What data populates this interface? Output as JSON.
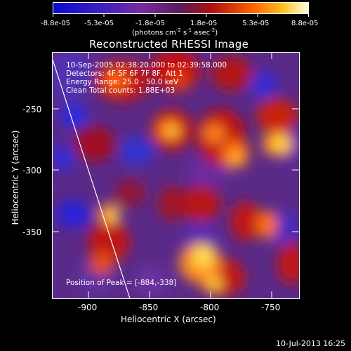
{
  "colorbar": {
    "tick_labels": [
      "-8.8e-05",
      "-5.3e-05",
      "-1.8e-05",
      "1.8e-05",
      "5.3e-05",
      "8.8e-05"
    ],
    "units_prefix": "(photons cm",
    "units_exp1": "-2",
    "units_mid": " s",
    "units_exp2": "-1",
    "units_mid2": " asec",
    "units_exp3": "-2",
    "units_suffix": ")"
  },
  "title": "Reconstructed RHESSI Image",
  "info": {
    "time_range": "10-Sep-2005 02:38:20.000 to 02:39:58.000",
    "detectors": "Detectors: 4F 5F 6F 7F 8F, Att 1",
    "energy": "Energy Range: 25.0 - 50.0 keV",
    "clean": "Clean    Total counts: 1.88E+03",
    "peak": "Position of Peak = [-884,-338]"
  },
  "axes": {
    "xlabel": "Heliocentric X (arcsec)",
    "ylabel": "Heliocentric Y (arcsec)",
    "xticks": [
      "-900",
      "-850",
      "-800",
      "-750"
    ],
    "yticks": [
      "-250",
      "-300",
      "-350"
    ]
  },
  "footer_date": "10-Jul-2013 16:25",
  "colors": {
    "negative": "#1e1ee6",
    "neutral": "#6a3a9a",
    "positive_low": "#c01818",
    "positive_mid": "#ff8000",
    "positive_high": "#ffffa0"
  }
}
